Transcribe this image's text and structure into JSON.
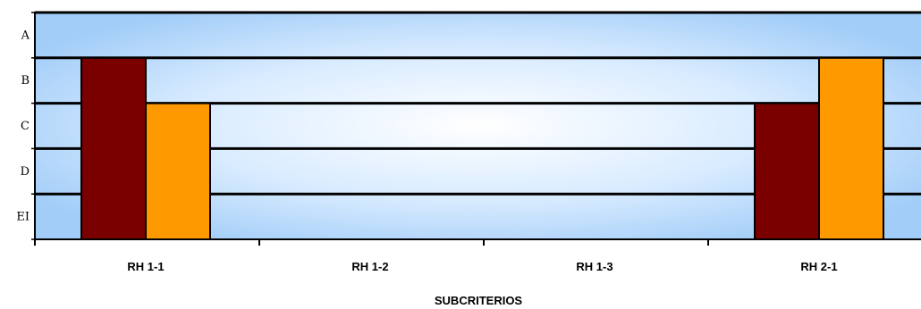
{
  "chart_data": {
    "type": "bar",
    "title": "",
    "xlabel": "SUBCRITERIOS",
    "ylabel": "",
    "y_levels": [
      "EI",
      "D",
      "C",
      "B",
      "A"
    ],
    "categories": [
      "RH 1-1",
      "RH 1-2",
      "RH 1-3",
      "RH 2-1"
    ],
    "series": [
      {
        "color": "#7a0000",
        "values": [
          4,
          0,
          0,
          3
        ]
      },
      {
        "color": "#ff9900",
        "values": [
          3,
          0,
          0,
          4
        ]
      }
    ],
    "ylim": [
      0,
      5
    ],
    "grid": true,
    "legend": "none"
  }
}
